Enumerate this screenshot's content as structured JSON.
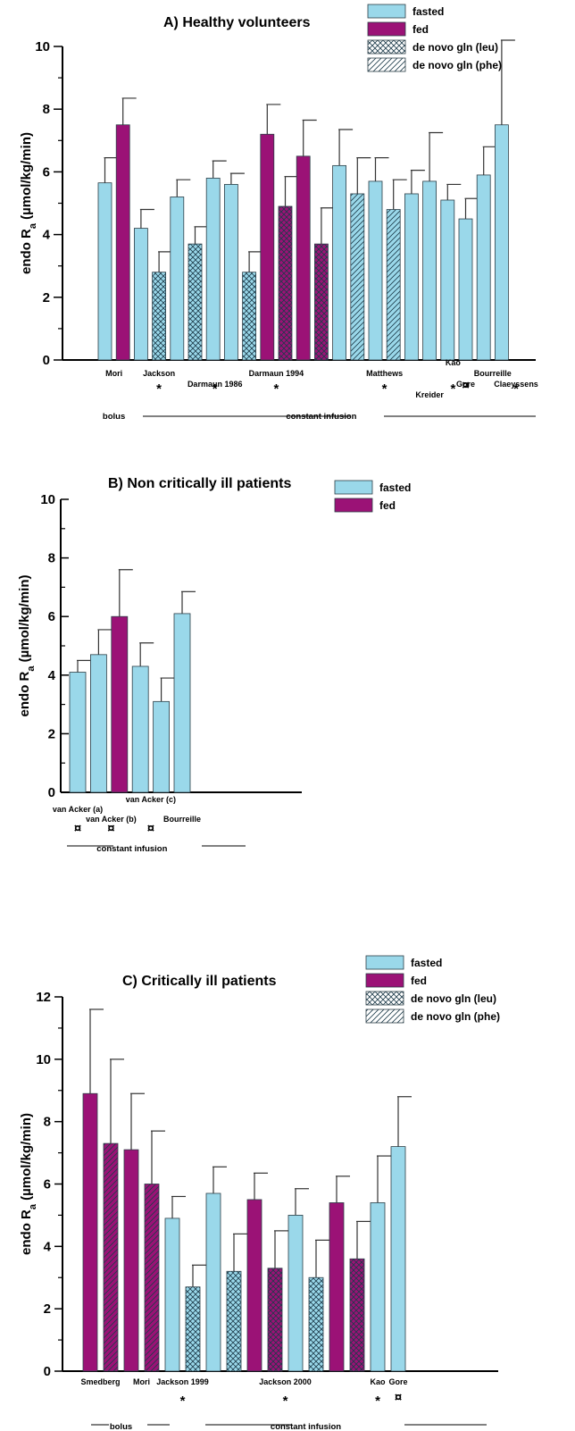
{
  "chart_data": [
    {
      "type": "bar",
      "title": "A) Healthy volunteers",
      "ylabel": "endo Ra (µmol/kg/min)",
      "ylim": [
        0,
        10
      ],
      "yticks": [
        0,
        2,
        4,
        6,
        8,
        10
      ],
      "legend": [
        "fasted",
        "fed",
        "de novo gln (leu)",
        "de novo gln (phe)"
      ],
      "legend_position": "top-right",
      "colors": {
        "fasted": "#9ad8ea",
        "fed": "#9b1276"
      },
      "bars": [
        {
          "value": 5.65,
          "err": 0.8,
          "kind": "fasted"
        },
        {
          "value": 7.5,
          "err": 0.85,
          "kind": "fed"
        },
        {
          "value": 4.2,
          "err": 0.6,
          "kind": "fasted"
        },
        {
          "value": 2.8,
          "err": 0.65,
          "kind": "leu"
        },
        {
          "value": 5.2,
          "err": 0.55,
          "kind": "fasted"
        },
        {
          "value": 3.7,
          "err": 0.55,
          "kind": "leu"
        },
        {
          "value": 5.8,
          "err": 0.55,
          "kind": "fasted"
        },
        {
          "value": 5.6,
          "err": 0.35,
          "kind": "fasted"
        },
        {
          "value": 2.8,
          "err": 0.65,
          "kind": "leu"
        },
        {
          "value": 7.2,
          "err": 0.95,
          "kind": "fed"
        },
        {
          "value": 4.9,
          "err": 0.95,
          "kind": "fed-leu"
        },
        {
          "value": 6.5,
          "err": 1.15,
          "kind": "fed"
        },
        {
          "value": 3.7,
          "err": 1.15,
          "kind": "fed-leu"
        },
        {
          "value": 6.2,
          "err": 1.15,
          "kind": "fasted"
        },
        {
          "value": 5.3,
          "err": 1.15,
          "kind": "phe"
        },
        {
          "value": 5.7,
          "err": 0.75,
          "kind": "fasted"
        },
        {
          "value": 4.8,
          "err": 0.95,
          "kind": "phe"
        },
        {
          "value": 5.3,
          "err": 0.75,
          "kind": "fasted"
        },
        {
          "value": 5.7,
          "err": 1.55,
          "kind": "fasted"
        },
        {
          "value": 5.1,
          "err": 0.5,
          "kind": "fasted"
        },
        {
          "value": 4.5,
          "err": 0.65,
          "kind": "fasted"
        },
        {
          "value": 5.9,
          "err": 0.9,
          "kind": "fasted"
        },
        {
          "value": 7.5,
          "err": 2.7,
          "kind": "fasted"
        }
      ],
      "labels": [
        {
          "text": "Mori",
          "bar": 0.5,
          "row": 0
        },
        {
          "text": "Jackson",
          "bar": 3,
          "row": 0
        },
        {
          "text": "Darmaun 1986",
          "bar": 6.1,
          "row": 1
        },
        {
          "text": "Darmaun 1994",
          "bar": 9.5,
          "row": 0
        },
        {
          "text": "Matthews",
          "bar": 15.5,
          "row": 0
        },
        {
          "text": "Kreider",
          "bar": 18,
          "row": 2
        },
        {
          "text": "Kao",
          "bar": 19.3,
          "row": -1
        },
        {
          "text": "Gore",
          "bar": 20,
          "row": 1
        },
        {
          "text": "Bourreille",
          "bar": 21.5,
          "row": 0
        },
        {
          "text": "Claeyssens",
          "bar": 22.8,
          "row": 1
        }
      ],
      "marks": [
        {
          "text": "*",
          "bar": 3
        },
        {
          "text": "*",
          "bar": 6.1
        },
        {
          "text": "*",
          "bar": 9.5
        },
        {
          "text": "*",
          "bar": 15.5
        },
        {
          "text": "*",
          "bar": 19.3
        },
        {
          "text": "¤",
          "bar": 20
        },
        {
          "text": "*",
          "bar": 22.8
        }
      ],
      "notes": [
        {
          "text": "bolus",
          "bar": 0.5
        },
        {
          "text": "constant infusion",
          "bar": 12
        }
      ]
    },
    {
      "type": "bar",
      "title": "B) Non critically ill patients",
      "ylabel": "endo Ra (µmol/kg/min)",
      "ylim": [
        0,
        10
      ],
      "yticks": [
        0,
        2,
        4,
        6,
        8,
        10
      ],
      "legend": [
        "fasted",
        "fed"
      ],
      "legend_position": "top-right",
      "bars": [
        {
          "value": 4.1,
          "err": 0.4,
          "kind": "fasted"
        },
        {
          "value": 4.7,
          "err": 0.85,
          "kind": "fasted"
        },
        {
          "value": 6.0,
          "err": 1.6,
          "kind": "fed"
        },
        {
          "value": 4.3,
          "err": 0.8,
          "kind": "fasted"
        },
        {
          "value": 3.1,
          "err": 0.8,
          "kind": "fasted"
        },
        {
          "value": 6.1,
          "err": 0.75,
          "kind": "fasted"
        }
      ],
      "labels": [
        {
          "text": "van Acker (a)",
          "bar": 0,
          "row": 0
        },
        {
          "text": "van Acker (b)",
          "bar": 1.6,
          "row": 1
        },
        {
          "text": "van Acker (c)",
          "bar": 3.5,
          "row": -1
        },
        {
          "text": "Bourreille",
          "bar": 5,
          "row": 1
        }
      ],
      "marks": [
        {
          "text": "¤",
          "bar": 0
        },
        {
          "text": "¤",
          "bar": 1.6
        },
        {
          "text": "¤",
          "bar": 3.5
        }
      ],
      "notes": [
        {
          "text": "constant infusion",
          "bar": 2.6
        }
      ]
    },
    {
      "type": "bar",
      "title": "C) Critically ill patients",
      "ylabel": "endo Ra (µmol/kg/min)",
      "ylim": [
        0,
        12
      ],
      "yticks": [
        0,
        2,
        4,
        6,
        8,
        10,
        12
      ],
      "legend": [
        "fasted",
        "fed",
        "de novo gln (leu)",
        "de novo gln (phe)"
      ],
      "legend_position": "top-right",
      "bars": [
        {
          "value": 8.9,
          "err": 2.7,
          "kind": "fed"
        },
        {
          "value": 7.3,
          "err": 2.7,
          "kind": "fed-phe"
        },
        {
          "value": 7.1,
          "err": 1.8,
          "kind": "fed"
        },
        {
          "value": 6.0,
          "err": 1.7,
          "kind": "fed-phe"
        },
        {
          "value": 4.9,
          "err": 0.7,
          "kind": "fasted"
        },
        {
          "value": 2.7,
          "err": 0.7,
          "kind": "leu"
        },
        {
          "value": 5.7,
          "err": 0.85,
          "kind": "fasted"
        },
        {
          "value": 3.2,
          "err": 1.2,
          "kind": "leu"
        },
        {
          "value": 5.5,
          "err": 0.85,
          "kind": "fed"
        },
        {
          "value": 3.3,
          "err": 1.2,
          "kind": "fed-leu"
        },
        {
          "value": 5.0,
          "err": 0.85,
          "kind": "fasted"
        },
        {
          "value": 3.0,
          "err": 1.2,
          "kind": "leu"
        },
        {
          "value": 5.4,
          "err": 0.85,
          "kind": "fed"
        },
        {
          "value": 3.6,
          "err": 1.2,
          "kind": "fed-leu"
        },
        {
          "value": 5.4,
          "err": 1.5,
          "kind": "fasted"
        },
        {
          "value": 7.2,
          "err": 1.6,
          "kind": "fasted"
        }
      ],
      "labels": [
        {
          "text": "Smedberg",
          "bar": 0.5,
          "row": 0
        },
        {
          "text": "Mori",
          "bar": 2.5,
          "row": 0
        },
        {
          "text": "Jackson 1999",
          "bar": 4.5,
          "row": 0
        },
        {
          "text": "Jackson 2000",
          "bar": 9.5,
          "row": 0
        },
        {
          "text": "Kao",
          "bar": 14,
          "row": 0
        },
        {
          "text": "Gore",
          "bar": 15,
          "row": 0
        }
      ],
      "marks": [
        {
          "text": "*",
          "bar": 4.5
        },
        {
          "text": "*",
          "bar": 9.5
        },
        {
          "text": "*",
          "bar": 14
        },
        {
          "text": "¤",
          "bar": 15
        }
      ],
      "notes": [
        {
          "text": "bolus",
          "bar": 1.5
        },
        {
          "text": "constant infusion",
          "bar": 10.5
        }
      ]
    }
  ]
}
